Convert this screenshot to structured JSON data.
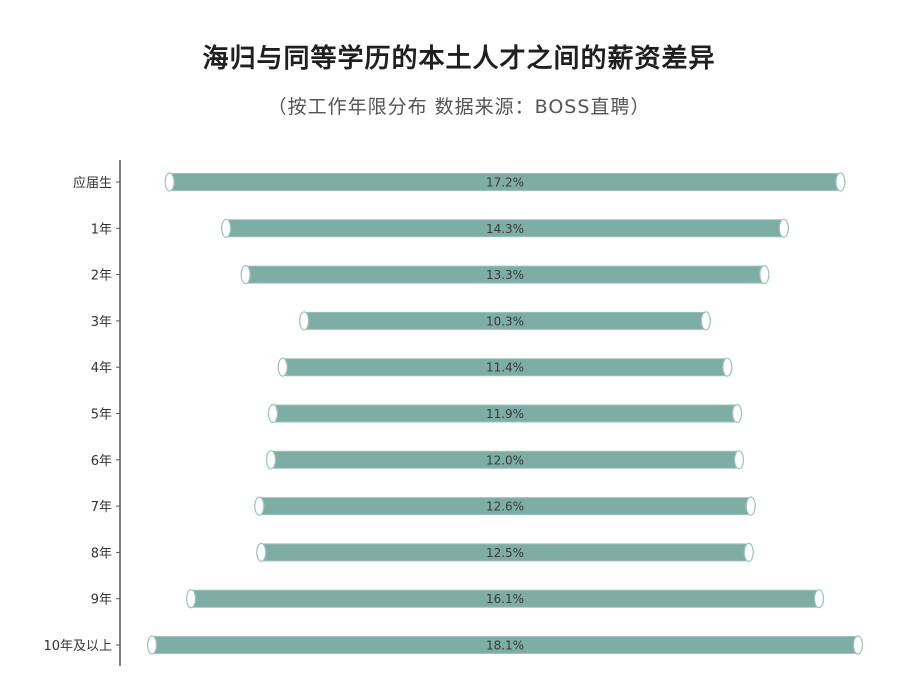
{
  "chart_data": {
    "type": "bar",
    "orientation": "horizontal",
    "title": "海归与同等学历的本土人才之间的薪资差异",
    "subtitle": "（按工作年限分布  数据来源：BOSS直聘）",
    "categories": [
      "应届生",
      "1年",
      "2年",
      "3年",
      "4年",
      "5年",
      "6年",
      "7年",
      "8年",
      "9年",
      "10年及以上"
    ],
    "values": [
      17.2,
      14.3,
      13.3,
      10.3,
      11.4,
      11.9,
      12.0,
      12.6,
      12.5,
      16.1,
      18.1
    ],
    "value_labels": [
      "17.2%",
      "14.3%",
      "13.3%",
      "10.3%",
      "11.4%",
      "11.9%",
      "12.0%",
      "12.6%",
      "12.5%",
      "16.1%",
      "18.1%"
    ],
    "bars_centered": true,
    "grid": false,
    "legend": "none",
    "colors": {
      "bar_fill": "#7dada5",
      "bar_stroke": "#9cc3bd",
      "axis": "#555555",
      "cap": "#ffffff"
    }
  }
}
